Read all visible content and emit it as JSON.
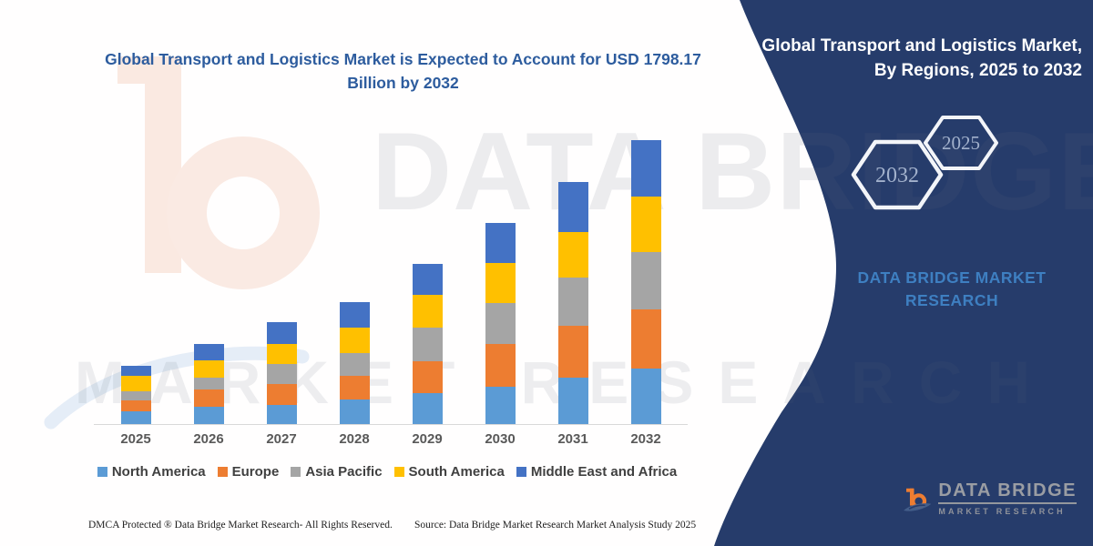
{
  "page": {
    "title": "Global Transport and Logistics Market is Expected to Account for USD 1798.17 Billion by 2032"
  },
  "right_panel": {
    "title": "Global Transport and Logistics Market, By Regions, 2025 to 2032",
    "hexagon_back_label": "2032",
    "hexagon_front_label": "2025",
    "brand_text": "DATA BRIDGE MARKET RESEARCH",
    "background_color": "#263c6b",
    "brand_text_color": "#3e7fc1"
  },
  "watermark": {
    "row1": "DATA BRIDGE",
    "row2": "MARKET RESEARCH"
  },
  "logo": {
    "name_line": "DATA BRIDGE",
    "sub_line": "MARKET RESEARCH",
    "b_color": "#ed7d31",
    "swoosh_color": "#44608c"
  },
  "footer": {
    "dmca": "DMCA Protected ® Data Bridge Market Research-  All Rights Reserved.",
    "source": "Source: Data Bridge Market Research  Market Analysis Study 2025"
  },
  "chart_data": {
    "type": "bar",
    "stacked": true,
    "title": "Global Transport and Logistics Market is Expected to Account for USD 1798.17 Billion by 2032",
    "unit": "USD Billion",
    "total_2032_usd_billion": 1798.17,
    "xlabel": "",
    "ylabel": "",
    "y_axis_visible": false,
    "grid": false,
    "legend_position": "bottom",
    "categories": [
      "2025",
      "2026",
      "2027",
      "2028",
      "2029",
      "2030",
      "2031",
      "2032"
    ],
    "series": [
      {
        "name": "North America",
        "color": "#5b9bd5",
        "values": [
          81,
          110,
          123,
          158,
          196,
          235,
          293,
          350
        ]
      },
      {
        "name": "Europe",
        "color": "#ed7d31",
        "values": [
          71,
          110,
          134,
          148,
          202,
          269,
          327,
          375
        ]
      },
      {
        "name": "Asia Pacific",
        "color": "#a5a5a5",
        "values": [
          59,
          77,
          125,
          144,
          212,
          260,
          308,
          362
        ]
      },
      {
        "name": "South America",
        "color": "#ffc000",
        "values": [
          100,
          111,
          127,
          164,
          209,
          254,
          289,
          354
        ]
      },
      {
        "name": "Middle East and Africa",
        "color": "#4472c4",
        "values": [
          63,
          106,
          138,
          163,
          198,
          256,
          317,
          357
        ]
      }
    ]
  }
}
